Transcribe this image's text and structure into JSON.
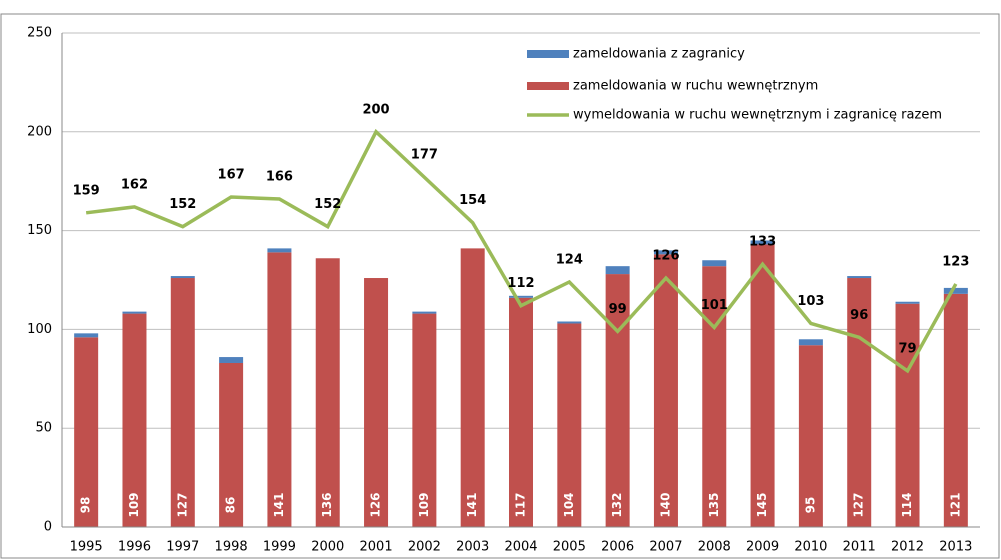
{
  "chart_data": {
    "type": "bar",
    "stacked": true,
    "categories": [
      "1995",
      "1996",
      "1997",
      "1998",
      "1999",
      "2000",
      "2001",
      "2002",
      "2003",
      "2004",
      "2005",
      "2006",
      "2007",
      "2008",
      "2009",
      "2010",
      "2011",
      "2012",
      "2013"
    ],
    "series": [
      {
        "name": "zameldowania w ruchu wewnętrznym",
        "color": "#c0504d",
        "values": [
          96,
          108,
          126,
          83,
          139,
          136,
          126,
          108,
          141,
          116,
          103,
          128,
          138,
          132,
          143,
          92,
          126,
          113,
          118
        ]
      },
      {
        "name": "zameldowania z zagranicy",
        "color": "#4f81bd",
        "values": [
          2,
          1,
          1,
          3,
          2,
          0,
          0,
          1,
          0,
          1,
          1,
          4,
          2,
          3,
          2,
          3,
          1,
          1,
          3
        ]
      },
      {
        "name": "wymeldowania w ruchu wewnętrznym i zagranicę razem",
        "color": "#9bbb59",
        "type": "line",
        "values": [
          159,
          162,
          152,
          167,
          166,
          152,
          200,
          177,
          154,
          112,
          124,
          99,
          126,
          101,
          133,
          103,
          96,
          79,
          123
        ]
      }
    ],
    "bar_totals": [
      98,
      109,
      127,
      86,
      141,
      136,
      126,
      109,
      141,
      117,
      104,
      132,
      140,
      135,
      145,
      95,
      127,
      114,
      121
    ],
    "legend_order": [
      1,
      0,
      2
    ],
    "ylim": [
      0,
      250
    ],
    "yticks": [
      0,
      50,
      100,
      150,
      200,
      250
    ],
    "grid": true,
    "legend": "top-right"
  }
}
